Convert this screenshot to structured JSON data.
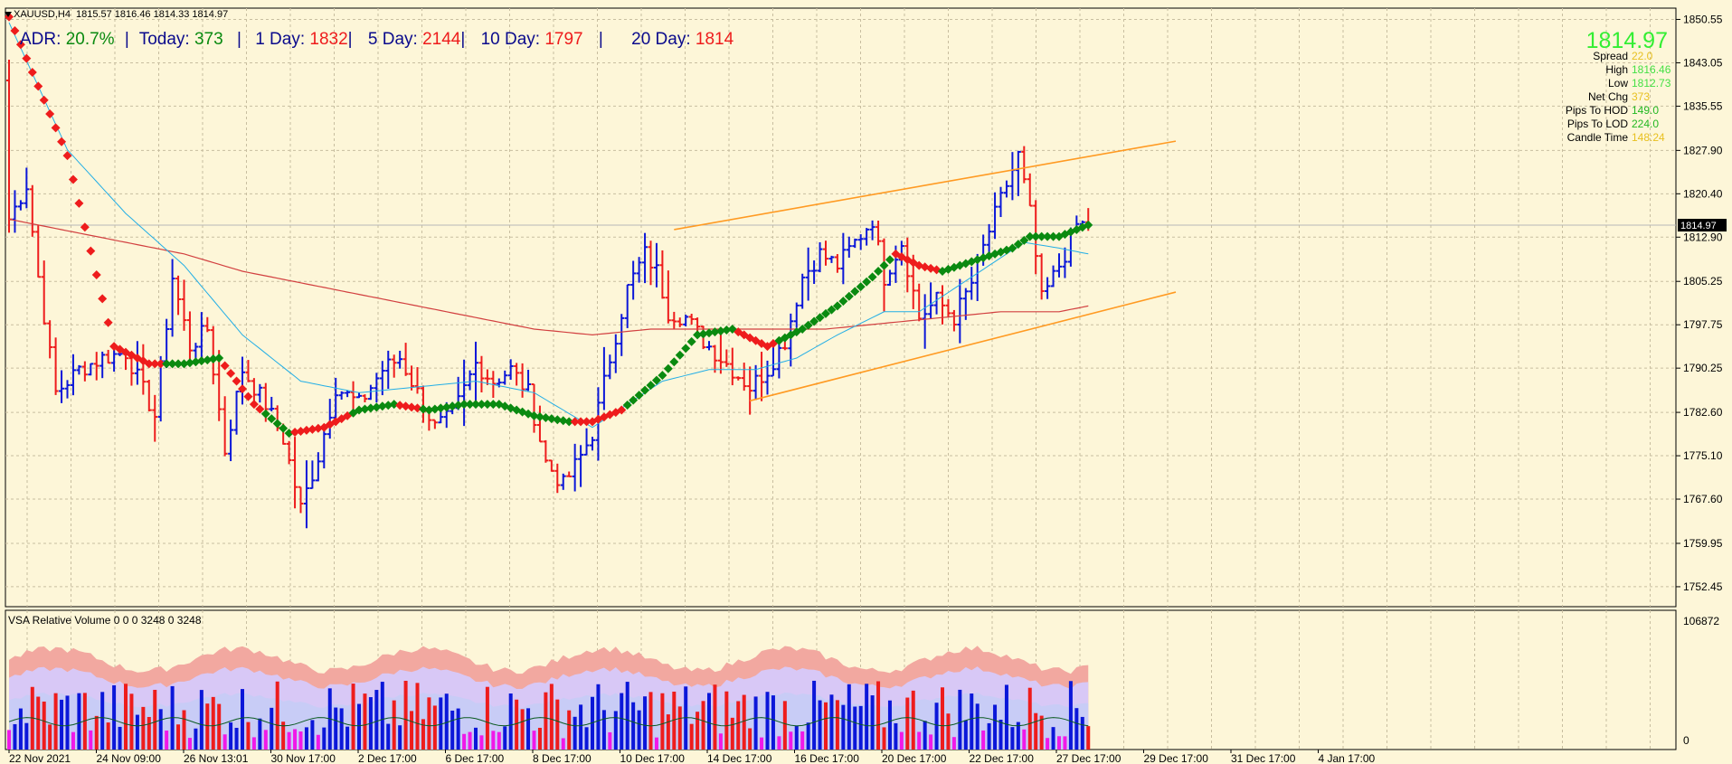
{
  "colors": {
    "background": "#fdf6d8",
    "grid": "#c8bea0",
    "bull_bar": "#0b17d9",
    "bear_bar": "#ee1c1c",
    "ma_up": "#0a8a10",
    "ma_down": "#ee1c1c",
    "ema_fast": "#22aee6",
    "ma_slow": "#d24040",
    "channel": "#ff9a22",
    "vol_band_outer": "#f2a8a0",
    "vol_band_mid": "#d8c8f6",
    "vol_band_inner": "#c8ccf6",
    "vol_blue": "#0b17d9",
    "vol_red": "#ee1c1c",
    "vol_magenta": "#f019e8"
  },
  "header": {
    "menu_icon": "triangle-down-icon",
    "symbol": "XAUUSD,H4",
    "ohlc": "1815.57 1816.46 1814.33 1814.97"
  },
  "adr": {
    "label": "ADR:",
    "value": "20.7%",
    "sep": "|",
    "today_label": "Today:",
    "today_value": "373",
    "day1_label": "1 Day:",
    "day1_value": "1832",
    "day5_label": "5 Day:",
    "day5_value": "2144",
    "day10_label": "10 Day:",
    "day10_value": "1797",
    "day20_label": "20 Day:",
    "day20_value": "1814"
  },
  "info_panel": {
    "price": "1814.97",
    "rows": [
      {
        "label": "Spread",
        "value": "22.0",
        "color": "#e8c020"
      },
      {
        "label": "High",
        "value": "1816.46",
        "color": "#44e044"
      },
      {
        "label": "Low",
        "value": "1812.73",
        "color": "#44e044"
      },
      {
        "label": "Net Chg",
        "value": "373",
        "color": "#e8c020"
      },
      {
        "label": "Pips To HOD",
        "value": "149.0",
        "color": "#22b822"
      },
      {
        "label": "Pips To LOD",
        "value": "224.0",
        "color": "#22b822"
      },
      {
        "label": "Candle Time",
        "value": "148:24",
        "color": "#e8c020"
      }
    ]
  },
  "volume_panel": {
    "title": "VSA Relative Volume 0 0 0 3248 0 3248",
    "scale_top": "106872",
    "scale_bottom": "0"
  },
  "chart_data": {
    "type": "bar",
    "symbol": "XAUUSD",
    "timeframe": "H4",
    "ylim": [
      1749.0,
      1852.5
    ],
    "price_ticks": [
      "1850.55",
      "1843.05",
      "1835.55",
      "1827.90",
      "1820.40",
      "1812.90",
      "1805.25",
      "1797.75",
      "1790.25",
      "1782.60",
      "1775.10",
      "1767.60",
      "1759.95",
      "1752.45"
    ],
    "last_price": "1814.97",
    "time_labels": [
      "22 Nov 2021",
      "24 Nov 09:00",
      "26 Nov 13:01",
      "30 Nov 17:00",
      "2 Dec 17:00",
      "6 Dec 17:00",
      "8 Dec 17:00",
      "10 Dec 17:00",
      "14 Dec 17:00",
      "16 Dec 17:00",
      "20 Dec 17:00",
      "22 Dec 17:00",
      "27 Dec 17:00",
      "29 Dec 17:00",
      "31 Dec 17:00",
      "4 Jan 17:00"
    ],
    "close_anchors": [
      [
        0,
        1816
      ],
      [
        3,
        1822
      ],
      [
        5,
        1806
      ],
      [
        8,
        1786
      ],
      [
        12,
        1790
      ],
      [
        16,
        1792
      ],
      [
        20,
        1793
      ],
      [
        25,
        1782
      ],
      [
        28,
        1806
      ],
      [
        31,
        1794
      ],
      [
        34,
        1797
      ],
      [
        37,
        1776
      ],
      [
        40,
        1790
      ],
      [
        44,
        1784
      ],
      [
        47,
        1778
      ],
      [
        50,
        1766
      ],
      [
        53,
        1775
      ],
      [
        56,
        1787
      ],
      [
        60,
        1784
      ],
      [
        64,
        1790
      ],
      [
        67,
        1792
      ],
      [
        70,
        1786
      ],
      [
        73,
        1780
      ],
      [
        76,
        1782
      ],
      [
        80,
        1791
      ],
      [
        83,
        1788
      ],
      [
        86,
        1790
      ],
      [
        89,
        1786
      ],
      [
        92,
        1774
      ],
      [
        95,
        1770
      ],
      [
        98,
        1775
      ],
      [
        100,
        1779
      ],
      [
        103,
        1792
      ],
      [
        106,
        1804
      ],
      [
        109,
        1810
      ],
      [
        111,
        1807
      ],
      [
        113,
        1800
      ],
      [
        116,
        1799
      ],
      [
        119,
        1795
      ],
      [
        122,
        1792
      ],
      [
        124,
        1790
      ],
      [
        127,
        1787
      ],
      [
        130,
        1790
      ],
      [
        133,
        1795
      ],
      [
        136,
        1806
      ],
      [
        139,
        1810
      ],
      [
        142,
        1808
      ],
      [
        145,
        1812
      ],
      [
        148,
        1816
      ],
      [
        150,
        1806
      ],
      [
        153,
        1812
      ],
      [
        156,
        1799
      ],
      [
        159,
        1802
      ],
      [
        162,
        1799
      ],
      [
        165,
        1805
      ],
      [
        168,
        1814
      ],
      [
        171,
        1822
      ],
      [
        173,
        1827
      ],
      [
        175,
        1817
      ],
      [
        177,
        1802
      ],
      [
        179,
        1806
      ],
      [
        181,
        1810
      ],
      [
        183,
        1815
      ],
      [
        185,
        1815
      ]
    ],
    "ma_period_points": [
      [
        0,
        1851
      ],
      [
        10,
        1827
      ],
      [
        18,
        1794
      ],
      [
        24,
        1791
      ],
      [
        30,
        1791
      ],
      [
        36,
        1792
      ],
      [
        42,
        1784
      ],
      [
        48,
        1779
      ],
      [
        54,
        1780
      ],
      [
        60,
        1783
      ],
      [
        66,
        1784
      ],
      [
        72,
        1783
      ],
      [
        78,
        1784
      ],
      [
        84,
        1784
      ],
      [
        90,
        1782
      ],
      [
        96,
        1781
      ],
      [
        100,
        1781
      ],
      [
        105,
        1783
      ],
      [
        112,
        1789
      ],
      [
        118,
        1796
      ],
      [
        124,
        1797
      ],
      [
        130,
        1794
      ],
      [
        136,
        1797
      ],
      [
        142,
        1801
      ],
      [
        148,
        1806
      ],
      [
        152,
        1810
      ],
      [
        156,
        1808
      ],
      [
        160,
        1807
      ],
      [
        166,
        1809
      ],
      [
        172,
        1811
      ],
      [
        175,
        1813
      ],
      [
        180,
        1813
      ],
      [
        185,
        1815
      ]
    ],
    "ma_color_flip_index": [
      [
        0,
        "down"
      ],
      [
        26,
        "down"
      ],
      [
        27,
        "up"
      ],
      [
        36,
        "up"
      ],
      [
        37,
        "down"
      ],
      [
        43,
        "down"
      ],
      [
        44,
        "up"
      ],
      [
        48,
        "up"
      ],
      [
        49,
        "down"
      ],
      [
        58,
        "down"
      ],
      [
        59,
        "up"
      ],
      [
        66,
        "up"
      ],
      [
        67,
        "down"
      ],
      [
        70,
        "down"
      ],
      [
        71,
        "up"
      ],
      [
        96,
        "up"
      ],
      [
        97,
        "down"
      ],
      [
        105,
        "down"
      ],
      [
        106,
        "up"
      ],
      [
        124,
        "up"
      ],
      [
        125,
        "down"
      ],
      [
        131,
        "down"
      ],
      [
        132,
        "up"
      ],
      [
        151,
        "up"
      ],
      [
        152,
        "down"
      ],
      [
        159,
        "down"
      ],
      [
        160,
        "up"
      ],
      [
        185,
        "up"
      ]
    ],
    "ema_fast_points": [
      [
        0,
        1850
      ],
      [
        10,
        1828
      ],
      [
        20,
        1817
      ],
      [
        30,
        1808
      ],
      [
        40,
        1796
      ],
      [
        50,
        1788
      ],
      [
        60,
        1786
      ],
      [
        70,
        1787
      ],
      [
        80,
        1788
      ],
      [
        90,
        1786
      ],
      [
        100,
        1780
      ],
      [
        106,
        1784
      ],
      [
        112,
        1788
      ],
      [
        120,
        1790
      ],
      [
        128,
        1790
      ],
      [
        135,
        1792
      ],
      [
        142,
        1796
      ],
      [
        150,
        1800
      ],
      [
        156,
        1800
      ],
      [
        162,
        1804
      ],
      [
        168,
        1808
      ],
      [
        174,
        1812
      ],
      [
        180,
        1811
      ],
      [
        185,
        1810
      ]
    ],
    "ma_slow_points": [
      [
        0,
        1816
      ],
      [
        10,
        1814
      ],
      [
        20,
        1812
      ],
      [
        30,
        1810
      ],
      [
        40,
        1807
      ],
      [
        50,
        1805
      ],
      [
        60,
        1803
      ],
      [
        70,
        1801
      ],
      [
        80,
        1799
      ],
      [
        90,
        1797
      ],
      [
        100,
        1796
      ],
      [
        110,
        1797
      ],
      [
        120,
        1797
      ],
      [
        130,
        1797
      ],
      [
        140,
        1797
      ],
      [
        150,
        1798
      ],
      [
        160,
        1799
      ],
      [
        170,
        1800
      ],
      [
        180,
        1800
      ],
      [
        185,
        1801
      ]
    ],
    "channel_upper": [
      [
        114,
        1814.2
      ],
      [
        200,
        1829.5
      ]
    ],
    "channel_lower": [
      [
        127,
        1784.6
      ],
      [
        200,
        1803.4
      ]
    ]
  }
}
